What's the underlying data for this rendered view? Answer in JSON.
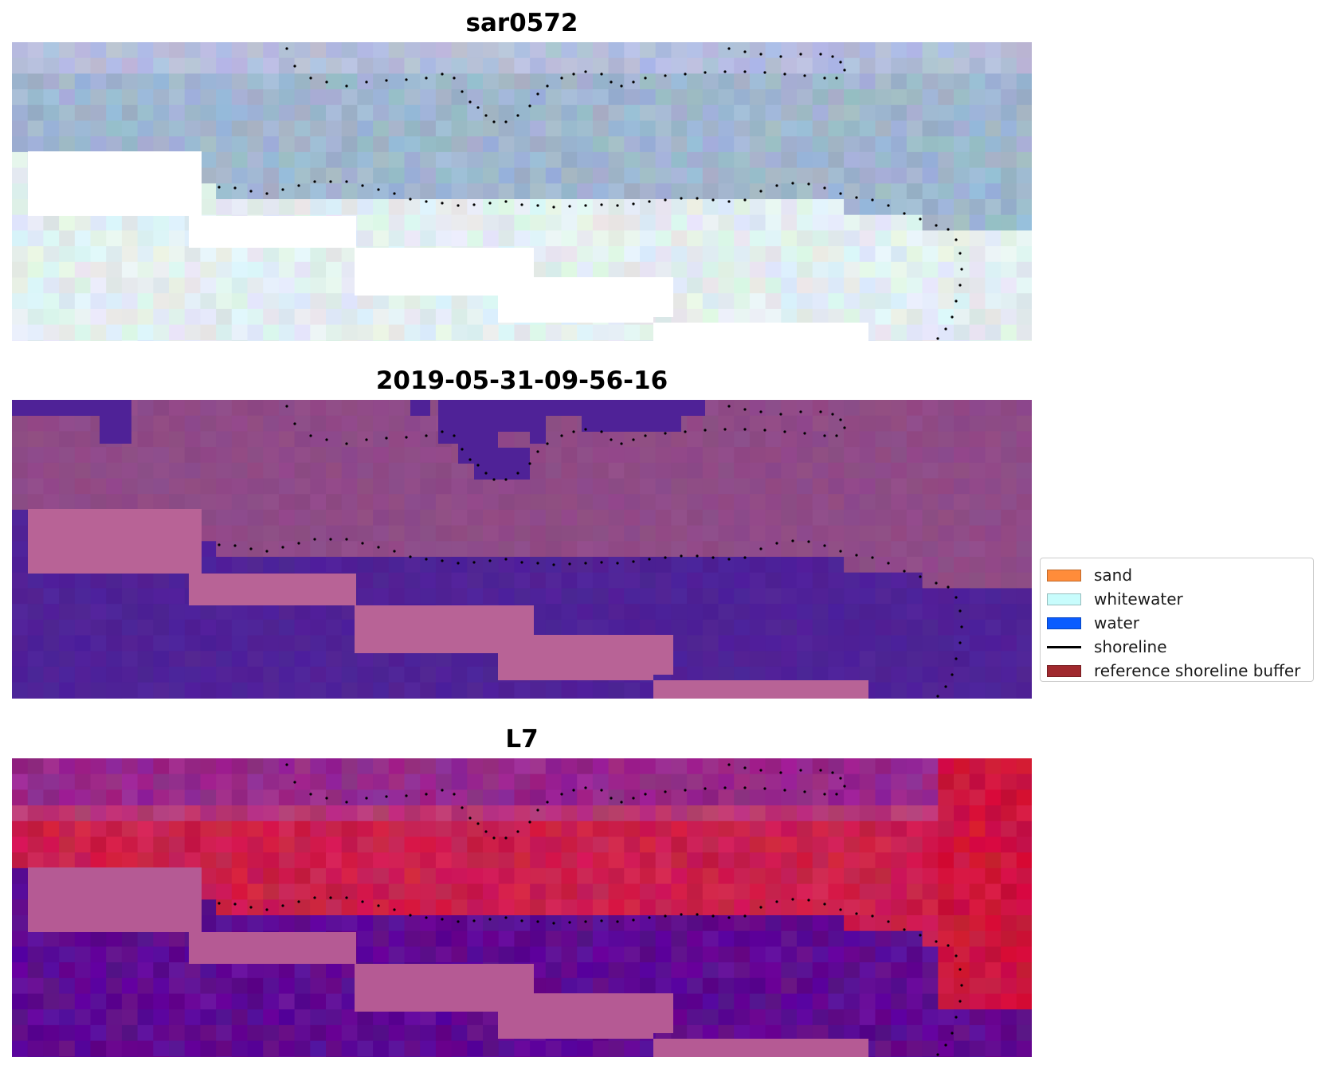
{
  "panels": [
    {
      "title": "sar0572",
      "style": "sar"
    },
    {
      "title": "2019-05-31-09-56-16",
      "style": "classified"
    },
    {
      "title": "L7",
      "style": "l7"
    }
  ],
  "legend": {
    "items": [
      {
        "label": "sand",
        "kind": "patch",
        "color": "#ff8c3a"
      },
      {
        "label": "whitewater",
        "kind": "patch",
        "color": "#c8fcfc"
      },
      {
        "label": "water",
        "kind": "patch",
        "color": "#0a5cff"
      },
      {
        "label": "shoreline",
        "kind": "line",
        "color": "#000000"
      },
      {
        "label": "reference shoreline buffer",
        "kind": "patch",
        "color": "#a0292e"
      }
    ]
  },
  "colors": {
    "sar_upper": "#9fb6cf",
    "sar_lower": "#e2eef0",
    "classified_upper": "#8f4b87",
    "classified_lower": "#4f2297",
    "classified_buffer": "#b86396",
    "l7_upper": "#cc1f4c",
    "l7_lower": "#5f0a92",
    "l7_buffer": "#b55a94"
  }
}
